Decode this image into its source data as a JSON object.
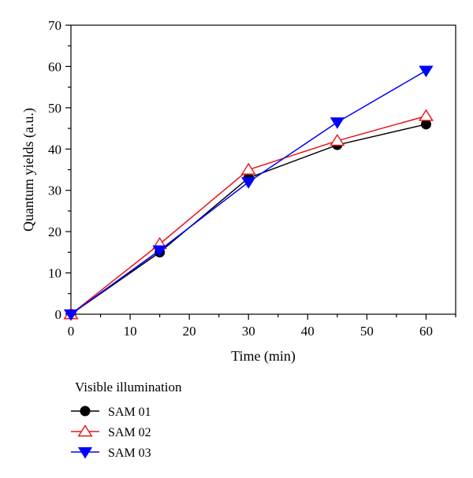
{
  "chart_data": {
    "type": "line",
    "xlabel": "Time (min)",
    "ylabel": "Quantum yields (a.u.)",
    "xlim": [
      0,
      65
    ],
    "ylim": [
      0,
      70
    ],
    "x_ticks": [
      0,
      10,
      20,
      30,
      40,
      50,
      60
    ],
    "y_ticks": [
      0,
      10,
      20,
      30,
      40,
      50,
      60,
      70
    ],
    "grid": false,
    "legend_title": "Visible illumination",
    "legend_position": "bottom-left, below plot",
    "series": [
      {
        "name": "SAM 01",
        "marker": "filled-circle",
        "color": "#000000",
        "x": [
          0,
          15,
          30,
          45,
          60
        ],
        "y": [
          0,
          15,
          33,
          41,
          46
        ]
      },
      {
        "name": "SAM 02",
        "marker": "open-triangle-up",
        "color": "#e8141c",
        "x": [
          0,
          15,
          30,
          45,
          60
        ],
        "y": [
          0,
          17,
          35,
          42,
          48
        ]
      },
      {
        "name": "SAM 03",
        "marker": "filled-triangle-down",
        "color": "#0000ff",
        "x": [
          0,
          15,
          30,
          45,
          60
        ],
        "y": [
          0,
          15.5,
          32,
          46.5,
          59
        ]
      }
    ]
  }
}
